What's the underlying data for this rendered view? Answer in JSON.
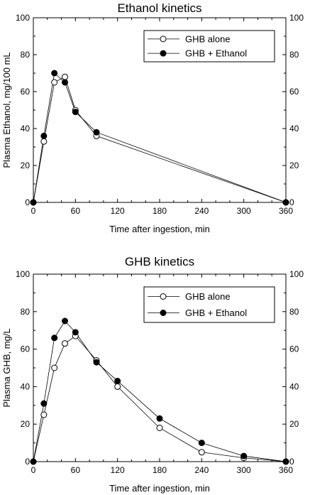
{
  "chart_data": [
    {
      "type": "line",
      "title": "Ethanol kinetics",
      "xlabel": "Time after ingestion, min",
      "ylabel": "Plasma Ethanol, mg/100 mL",
      "xlim": [
        0,
        360
      ],
      "ylim": [
        0,
        100
      ],
      "xticks": [
        0,
        60,
        120,
        180,
        240,
        300,
        360
      ],
      "yticks": [
        0,
        20,
        40,
        60,
        80,
        100
      ],
      "grid": false,
      "legend_position": "top-right",
      "series": [
        {
          "name": "GHB alone",
          "marker": "open-circle",
          "x": [
            0,
            15,
            30,
            45,
            60,
            90,
            360
          ],
          "y": [
            0,
            33,
            65,
            68,
            50,
            36,
            0
          ]
        },
        {
          "name": "GHB + Ethanol",
          "marker": "filled-circle",
          "x": [
            0,
            15,
            30,
            45,
            60,
            90,
            360
          ],
          "y": [
            0,
            36,
            70,
            65,
            49,
            38,
            0
          ]
        }
      ]
    },
    {
      "type": "line",
      "title": "GHB kinetics",
      "xlabel": "Time after ingestion, min",
      "ylabel": "Plasma GHB, mg/L",
      "xlim": [
        0,
        360
      ],
      "ylim": [
        0,
        100
      ],
      "xticks": [
        0,
        60,
        120,
        180,
        240,
        300,
        360
      ],
      "yticks": [
        0,
        20,
        40,
        60,
        80,
        100
      ],
      "grid": false,
      "legend_position": "top-right",
      "series": [
        {
          "name": "GHB alone",
          "marker": "open-circle",
          "x": [
            0,
            15,
            30,
            45,
            60,
            90,
            120,
            180,
            240,
            300,
            360
          ],
          "y": [
            0,
            25,
            50,
            63,
            67,
            54,
            40,
            18,
            5,
            2,
            0
          ]
        },
        {
          "name": "GHB + Ethanol",
          "marker": "filled-circle",
          "x": [
            0,
            15,
            30,
            45,
            60,
            90,
            120,
            180,
            240,
            300,
            360
          ],
          "y": [
            0,
            31,
            66,
            75,
            69,
            53,
            43,
            23,
            10,
            3,
            0
          ]
        }
      ]
    }
  ]
}
